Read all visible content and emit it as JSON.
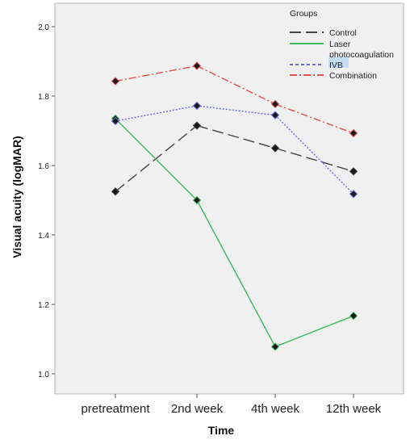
{
  "chart_data": {
    "type": "line",
    "title": "",
    "xlabel": "Time",
    "ylabel": "Visual acuity (logMAR)",
    "categories": [
      "pretreatment",
      "2nd week",
      "4th week",
      "12th week"
    ],
    "ylim": [
      0.97,
      2.03
    ],
    "yticks": [
      "1.0",
      "1.2",
      "1.4",
      "1.6",
      "1.8",
      "2.0"
    ],
    "ytick_values": [
      1.0,
      1.2,
      1.4,
      1.6,
      1.8,
      2.0
    ],
    "grid": false,
    "legend": {
      "title": "Groups",
      "placement": "top-right"
    },
    "series": [
      {
        "name": "Control",
        "values": [
          1.525,
          1.715,
          1.65,
          1.583
        ],
        "color": "#444444",
        "dash": "long-dash"
      },
      {
        "name": "Laser photocoagulation",
        "values": [
          1.735,
          1.5,
          1.078,
          1.167
        ],
        "color": "#3fb860",
        "dash": "solid"
      },
      {
        "name": "IVB",
        "values": [
          1.728,
          1.772,
          1.745,
          1.518
        ],
        "color": "#6a6ae0",
        "dash": "dot"
      },
      {
        "name": "Combination",
        "values": [
          1.843,
          1.887,
          1.777,
          1.693
        ],
        "color": "#e05050",
        "dash": "dash-dot"
      }
    ],
    "plot_background": "#f0f0f0"
  }
}
